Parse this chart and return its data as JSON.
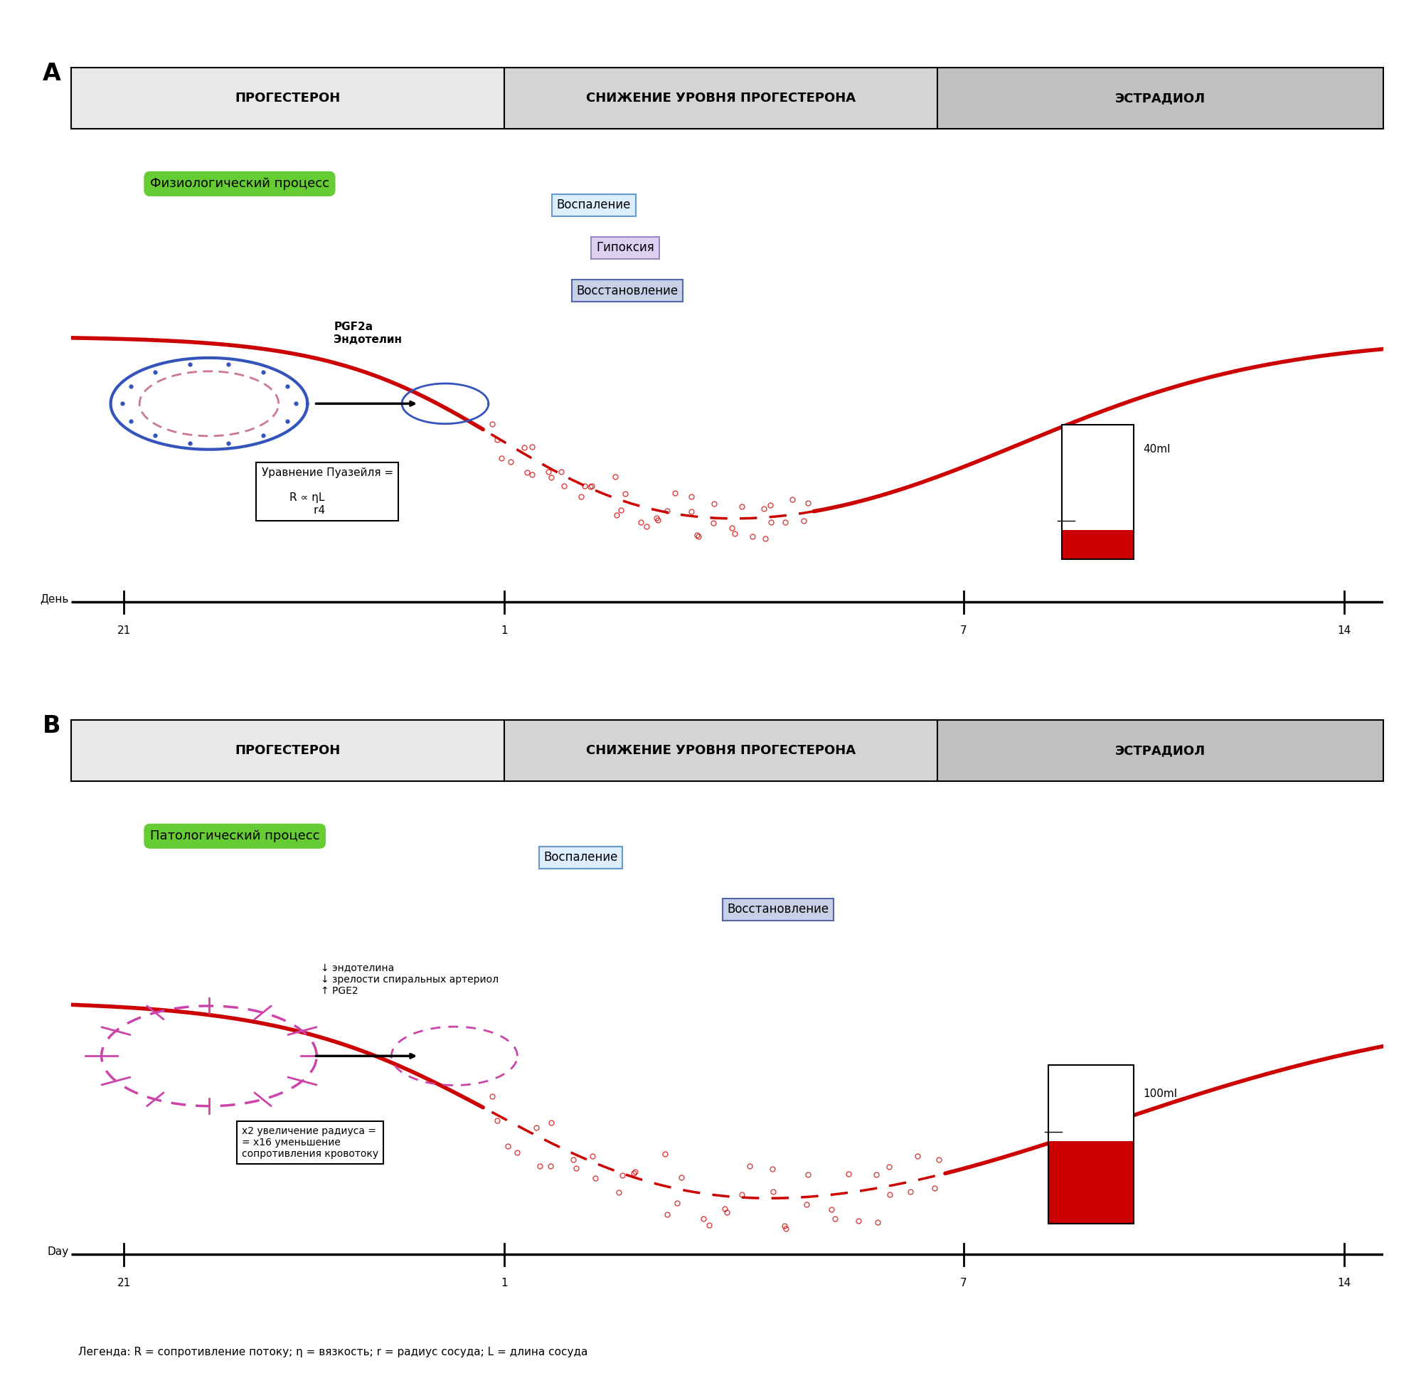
{
  "panel_A_label": "А",
  "panel_B_label": "В",
  "header_col1": "ПРОГЕСТЕРОН",
  "header_col2": "СНИЖЕНИЕ УРОВНЯ ПРОГЕСТЕРОНА",
  "header_col3": "ЭСТРАДИОЛ",
  "header_col1_bg": "#e8e8e8",
  "header_col2_bg": "#d4d4d4",
  "header_col3_bg": "#c0c0c0",
  "physio_label": "Физиологический процесс",
  "physio_color": "#66cc33",
  "patho_label": "Патологический процесс",
  "patho_color": "#66cc33",
  "box1_A_text": "Воспаление",
  "box1_A_color": "#ddeeff",
  "box1_A_border": "#6699cc",
  "box2_A_text": "Гипоксия",
  "box2_A_color": "#ddd0f0",
  "box2_A_border": "#9988bb",
  "box3_A_text": "Восстановление",
  "box3_A_color": "#c8d0e8",
  "box3_A_border": "#5566aa",
  "box1_B_text": "Воспаление",
  "box1_B_color": "#ddeeff",
  "box1_B_border": "#6699cc",
  "box2_B_text": "Восстановление",
  "box2_B_color": "#c8d0e8",
  "box2_B_border": "#5566aa",
  "curve_color": "#cc0000",
  "dashes_color": "#cc0000",
  "day_label_A": "День",
  "day_label_B": "Day",
  "tick_labels": [
    "21",
    "1",
    "7",
    "14"
  ],
  "beaker_label_A": "40ml",
  "beaker_label_B": "100ml",
  "annotation_A": "PGF2a\nЭндотелин",
  "annotation_B": "↓ эндотелина\n↓ зрелости спиральных артериол\n↑ PGE2",
  "annotation_B2": "x2 увеличение радиуса =\n= x16 уменьшение\nсопротивления кровотоку",
  "legend_text": "Легенда: R = сопротивление потоку; η = вязкость; r = радиус сосуда; L = длина сосуда",
  "background_color": "#ffffff"
}
